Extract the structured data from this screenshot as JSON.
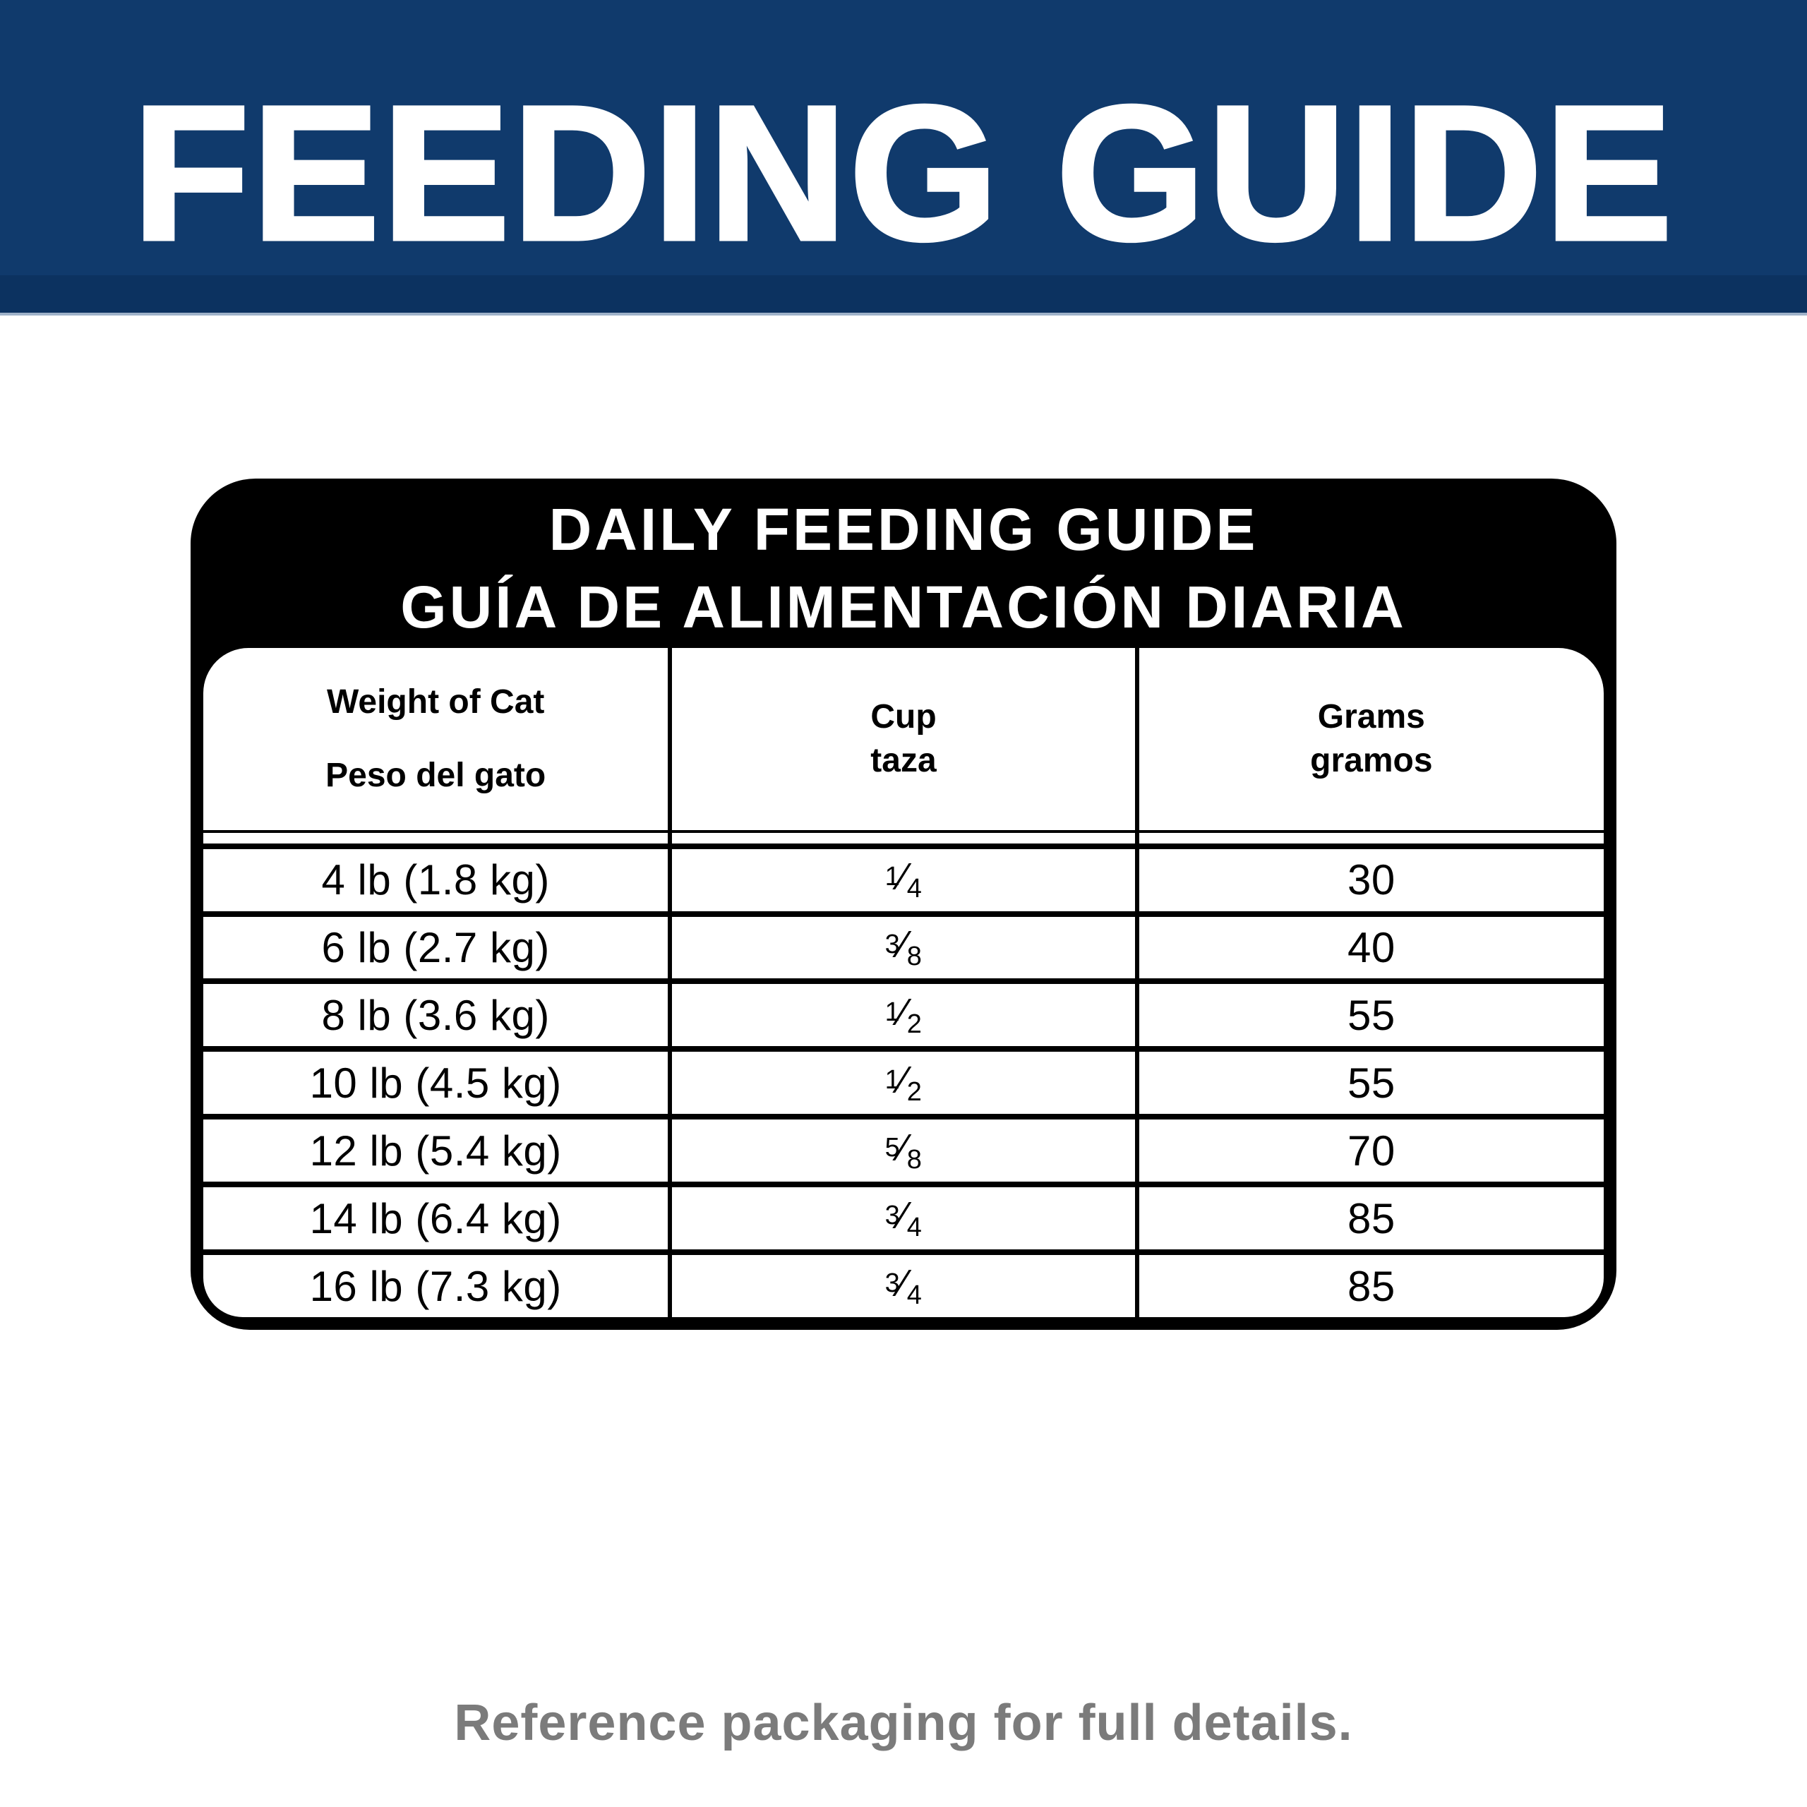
{
  "banner": {
    "title": "FEEDING GUIDE",
    "bg_color": "#103a6c",
    "bottom_strip_color": "#0c3260",
    "edge_line_color": "#9fb2c9",
    "text_color": "#ffffff"
  },
  "card": {
    "title_en": "DAILY FEEDING GUIDE",
    "title_es": "GUÍA DE ALIMENTACIÓN DIARIA",
    "bg_color": "#000000",
    "text_color": "#ffffff"
  },
  "table": {
    "columns": [
      {
        "en": "Weight of Cat",
        "es": "Peso del gato"
      },
      {
        "en": "Cup",
        "es": "taza"
      },
      {
        "en": "Grams",
        "es": "gramos"
      }
    ],
    "fraction_slash": "⁄",
    "rows": [
      {
        "weight": "4 lb (1.8 kg)",
        "cup_num": "1",
        "cup_den": "4",
        "grams": "30"
      },
      {
        "weight": "6 lb (2.7 kg)",
        "cup_num": "3",
        "cup_den": "8",
        "grams": "40"
      },
      {
        "weight": "8 lb (3.6 kg)",
        "cup_num": "1",
        "cup_den": "2",
        "grams": "55"
      },
      {
        "weight": "10 lb (4.5 kg)",
        "cup_num": "1",
        "cup_den": "2",
        "grams": "55"
      },
      {
        "weight": "12 lb (5.4 kg)",
        "cup_num": "5",
        "cup_den": "8",
        "grams": "70"
      },
      {
        "weight": "14 lb (6.4 kg)",
        "cup_num": "3",
        "cup_den": "4",
        "grams": "85"
      },
      {
        "weight": "16 lb (7.3 kg)",
        "cup_num": "3",
        "cup_den": "4",
        "grams": "85"
      }
    ]
  },
  "footer": {
    "note": "Reference packaging for full details.",
    "text_color": "#7b7b7b"
  }
}
